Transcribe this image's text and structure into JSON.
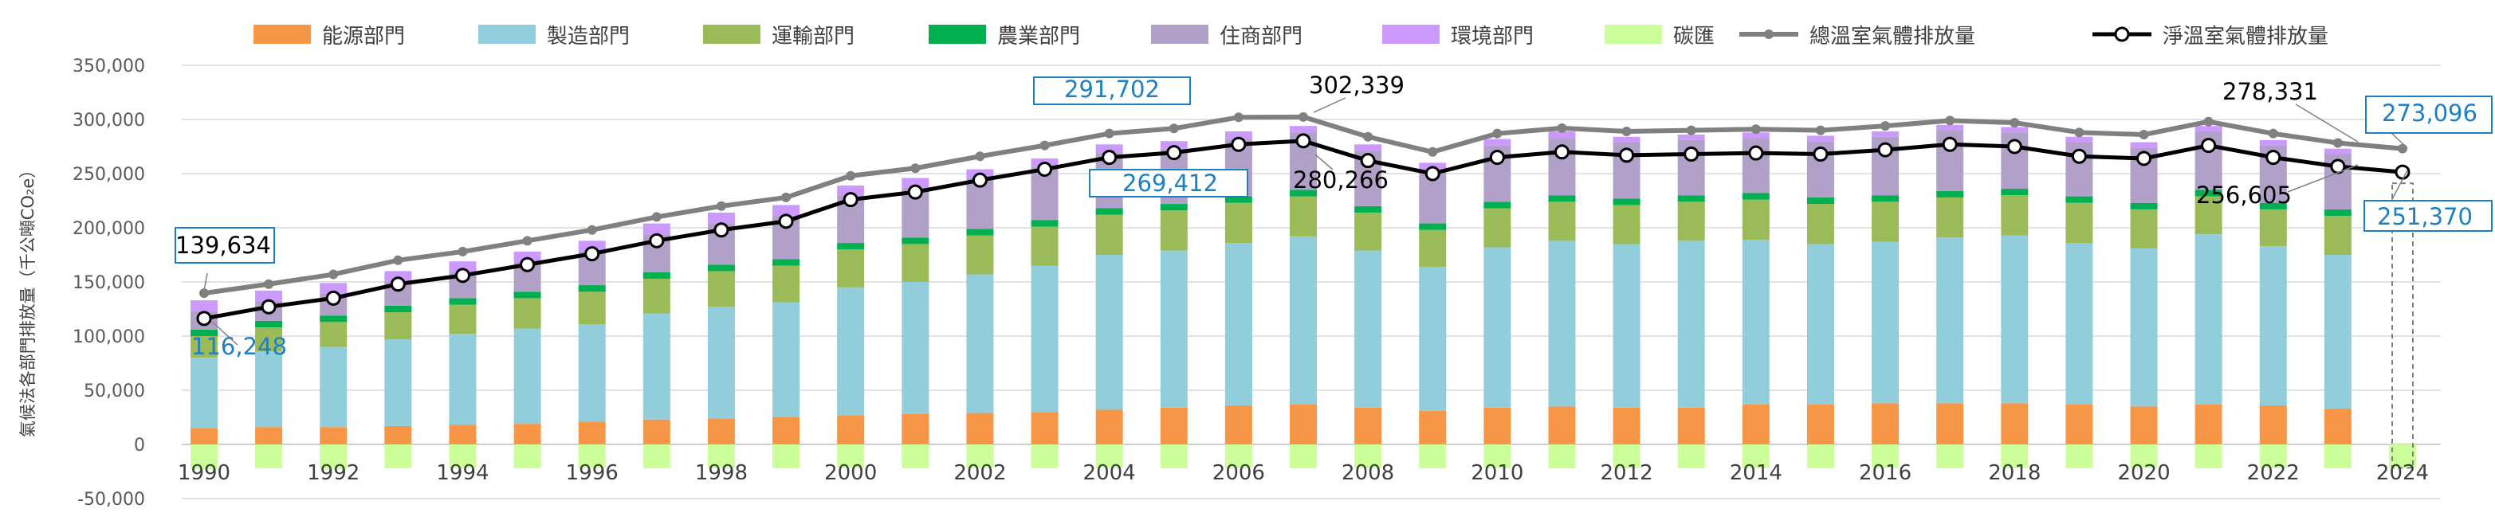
{
  "chart_data": {
    "type": "bar",
    "stacked": true,
    "ylabel": "氣候法各部門排放量（千公噸CO₂e）",
    "ylim": [
      -50000,
      350000
    ],
    "yticks": [
      -50000,
      0,
      50000,
      100000,
      150000,
      200000,
      250000,
      300000,
      350000
    ],
    "ytick_labels": [
      "-50,000",
      "0",
      "50,000",
      "100,000",
      "150,000",
      "200,000",
      "250,000",
      "300,000",
      "350,000"
    ],
    "grid": true,
    "legend_position": "top",
    "categories": [
      "1990",
      "1991",
      "1992",
      "1993",
      "1994",
      "1995",
      "1996",
      "1997",
      "1998",
      "1999",
      "2000",
      "2001",
      "2002",
      "2003",
      "2004",
      "2005",
      "2006",
      "2007",
      "2008",
      "2009",
      "2010",
      "2011",
      "2012",
      "2013",
      "2014",
      "2015",
      "2016",
      "2017",
      "2018",
      "2019",
      "2020",
      "2021",
      "2022",
      "2023",
      "2024"
    ],
    "xtick_labels": [
      "1990",
      "",
      "1992",
      "",
      "1994",
      "",
      "1996",
      "",
      "1998",
      "",
      "2000",
      "",
      "2002",
      "",
      "2004",
      "",
      "2006",
      "",
      "2008",
      "",
      "2010",
      "",
      "2012",
      "",
      "2014",
      "",
      "2016",
      "",
      "2018",
      "",
      "2020",
      "",
      "2022",
      "",
      "2024"
    ],
    "series": [
      {
        "name": "能源部門",
        "color": "#F79646",
        "values": [
          15000,
          16000,
          16000,
          17000,
          18000,
          19000,
          21000,
          23000,
          24000,
          25000,
          27000,
          28000,
          29000,
          30000,
          32000,
          34000,
          36000,
          37000,
          34000,
          31000,
          34000,
          35000,
          34000,
          34000,
          37000,
          37000,
          38000,
          38000,
          38000,
          37000,
          35000,
          37000,
          36000,
          33000,
          null
        ]
      },
      {
        "name": "製造部門",
        "color": "#92CDDC",
        "values": [
          65000,
          70000,
          74000,
          80000,
          84000,
          88000,
          90000,
          98000,
          103000,
          106000,
          118000,
          122000,
          128000,
          135000,
          143000,
          145000,
          150000,
          155000,
          145000,
          133000,
          148000,
          153000,
          151000,
          154000,
          152000,
          148000,
          149000,
          153000,
          155000,
          149000,
          146000,
          157000,
          147000,
          142000,
          null
        ]
      },
      {
        "name": "運輸部門",
        "color": "#9BBB59",
        "values": [
          20000,
          22000,
          23000,
          25000,
          27000,
          28000,
          30000,
          32000,
          33000,
          34000,
          35000,
          35000,
          36000,
          36000,
          37000,
          37000,
          37000,
          37000,
          35000,
          34000,
          36000,
          36000,
          36000,
          36000,
          37000,
          37000,
          37000,
          37000,
          37000,
          37000,
          36000,
          35000,
          34000,
          36000,
          null
        ]
      },
      {
        "name": "農業部門",
        "color": "#00B050",
        "values": [
          6000,
          6000,
          6000,
          6000,
          6000,
          6000,
          6000,
          6000,
          6000,
          6000,
          6000,
          6000,
          6000,
          6000,
          6000,
          6000,
          6000,
          6000,
          6000,
          6000,
          6000,
          6000,
          6000,
          6000,
          6000,
          6000,
          6000,
          6000,
          6000,
          6000,
          6000,
          6000,
          6000,
          6000,
          null
        ]
      },
      {
        "name": "住商部門",
        "color": "#B1A0C7",
        "values": [
          17000,
          18000,
          20000,
          22000,
          24000,
          27000,
          31000,
          35000,
          38000,
          40000,
          44000,
          46000,
          47000,
          49000,
          51000,
          51000,
          53000,
          53000,
          51000,
          50000,
          52000,
          53000,
          52000,
          51000,
          51000,
          52000,
          54000,
          56000,
          52000,
          50000,
          51000,
          54000,
          53000,
          51000,
          null
        ]
      },
      {
        "name": "環境部門",
        "color": "#CC99FF",
        "values": [
          10000,
          10000,
          10000,
          10000,
          10000,
          10000,
          10000,
          10000,
          10000,
          10000,
          9000,
          9000,
          8000,
          8000,
          8000,
          7000,
          7000,
          6000,
          6000,
          6000,
          6000,
          6000,
          5000,
          5000,
          5000,
          5000,
          5000,
          5000,
          5000,
          5000,
          5000,
          5000,
          5000,
          5000,
          null
        ]
      },
      {
        "name": "碳匯",
        "color": "#CCFF99",
        "values": [
          -23000,
          -22000,
          -23000,
          -22000,
          -22000,
          -22000,
          -22000,
          -22000,
          -22000,
          -22000,
          -22000,
          -22000,
          -22000,
          -22000,
          -22000,
          -22000,
          -22000,
          -22000,
          -22000,
          -22000,
          -22000,
          -22000,
          -22000,
          -22000,
          -22000,
          -22000,
          -22000,
          -22000,
          -22000,
          -22000,
          -22000,
          -22000,
          -22000,
          -22000,
          -21726
        ]
      }
    ],
    "lines": [
      {
        "name": "總溫室氣體排放量",
        "color": "#808080",
        "values": [
          139634,
          148000,
          157000,
          170000,
          178000,
          188000,
          198000,
          210000,
          220000,
          228000,
          248000,
          255000,
          266000,
          276000,
          287000,
          291702,
          302000,
          302339,
          284000,
          270000,
          287000,
          292000,
          289000,
          290000,
          291000,
          290000,
          294000,
          299000,
          297000,
          288000,
          286000,
          298000,
          287000,
          278331,
          273096
        ]
      },
      {
        "name": "淨溫室氣體排放量",
        "color": "#000000",
        "values": [
          116248,
          127000,
          135000,
          148000,
          156000,
          166000,
          176000,
          188000,
          198000,
          206000,
          226000,
          233000,
          244000,
          254000,
          265000,
          269412,
          277000,
          280266,
          262000,
          250000,
          265000,
          270000,
          267000,
          268000,
          269000,
          268000,
          272000,
          277000,
          275000,
          266000,
          264000,
          276000,
          265000,
          256605,
          251370
        ]
      }
    ],
    "annotations": [
      {
        "text": "139,634",
        "year": "1990",
        "series": "總溫室氣體排放量",
        "boxed": true,
        "color": "#000000"
      },
      {
        "text": "116,248",
        "year": "1990",
        "series": "淨溫室氣體排放量",
        "boxed": false,
        "color": "#1F7FBF"
      },
      {
        "text": "291,702",
        "year": "2005",
        "series": "總溫室氣體排放量",
        "boxed": true,
        "color": "#1F7FBF"
      },
      {
        "text": "269,412",
        "year": "2005",
        "series": "淨溫室氣體排放量",
        "boxed": true,
        "color": "#1F7FBF"
      },
      {
        "text": "302,339",
        "year": "2007",
        "series": "總溫室氣體排放量",
        "boxed": false,
        "color": "#000000"
      },
      {
        "text": "280,266",
        "year": "2007",
        "series": "淨溫室氣體排放量",
        "boxed": false,
        "color": "#000000"
      },
      {
        "text": "278,331",
        "year": "2023",
        "series": "總溫室氣體排放量",
        "boxed": false,
        "color": "#000000"
      },
      {
        "text": "256,605",
        "year": "2023",
        "series": "淨溫室氣體排放量",
        "boxed": false,
        "color": "#000000"
      },
      {
        "text": "273,096",
        "year": "2024",
        "series": "總溫室氣體排放量",
        "boxed": true,
        "color": "#1F7FBF"
      },
      {
        "text": "251,370",
        "year": "2024",
        "series": "淨溫室氣體排放量",
        "boxed": true,
        "color": "#1F7FBF"
      }
    ]
  }
}
